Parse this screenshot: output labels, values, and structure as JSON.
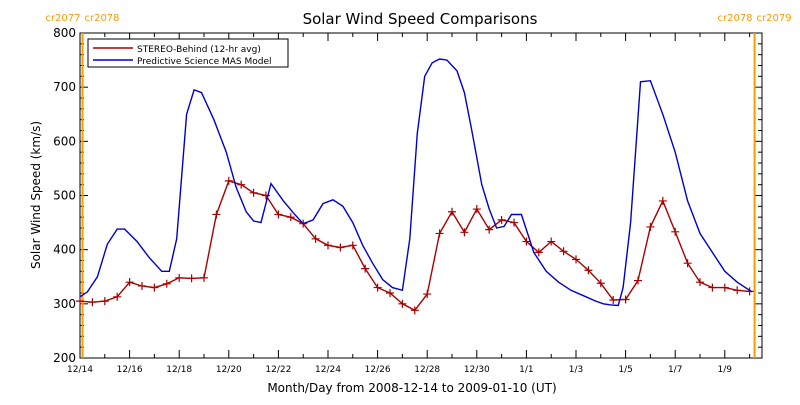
{
  "chart_data": {
    "type": "line",
    "title": "Solar Wind Speed Comparisons",
    "xlabel": "Month/Day from 2008-12-14 to 2009-01-10 (UT)",
    "ylabel": "Solar Wind Speed (km/s)",
    "xlim": [
      0,
      27.5
    ],
    "ylim": [
      200,
      800
    ],
    "yticks": [
      200,
      300,
      400,
      500,
      600,
      700,
      800
    ],
    "xticks": [
      {
        "x": 0,
        "label": "12/14"
      },
      {
        "x": 2,
        "label": "12/16"
      },
      {
        "x": 4,
        "label": "12/18"
      },
      {
        "x": 6,
        "label": "12/20"
      },
      {
        "x": 8,
        "label": "12/22"
      },
      {
        "x": 10,
        "label": "12/24"
      },
      {
        "x": 12,
        "label": "12/26"
      },
      {
        "x": 14,
        "label": "12/28"
      },
      {
        "x": 16,
        "label": "12/30"
      },
      {
        "x": 18,
        "label": "1/1"
      },
      {
        "x": 20,
        "label": "1/3"
      },
      {
        "x": 22,
        "label": "1/5"
      },
      {
        "x": 24,
        "label": "1/7"
      },
      {
        "x": 26,
        "label": "1/9"
      }
    ],
    "grid": false,
    "legend_position": "top-left",
    "carrington_markers": [
      {
        "x": 0.1,
        "left_label": "cr2077",
        "right_label": "cr2078"
      },
      {
        "x": 27.2,
        "left_label": "cr2078",
        "right_label": "cr2079"
      }
    ],
    "marker_color": "#ff9900",
    "series": [
      {
        "name": "STEREO-Behind (12-hr avg)",
        "color": "#aa0000",
        "marker": "plus",
        "x": [
          0,
          0.5,
          1,
          1.5,
          2,
          2.5,
          3,
          3.5,
          4,
          4.5,
          5,
          5.5,
          6,
          6.5,
          7,
          7.5,
          8,
          8.5,
          9,
          9.5,
          10,
          10.5,
          11,
          11.5,
          12,
          12.5,
          13,
          13.5,
          14,
          14.5,
          15,
          15.5,
          16,
          16.5,
          17,
          17.5,
          18,
          18.5,
          19,
          19.5,
          20,
          20.5,
          21,
          21.5,
          22,
          22.5,
          23,
          23.5,
          24,
          24.5,
          25,
          25.5,
          26,
          26.5,
          27
        ],
        "y": [
          305,
          303,
          305,
          313,
          340,
          333,
          330,
          337,
          348,
          347,
          348,
          465,
          527,
          520,
          505,
          500,
          465,
          460,
          448,
          420,
          408,
          404,
          408,
          365,
          330,
          320,
          300,
          288,
          318,
          430,
          470,
          432,
          475,
          437,
          455,
          450,
          415,
          395,
          415,
          397,
          382,
          362,
          338,
          307,
          308,
          343,
          442,
          490,
          433,
          375,
          340,
          330,
          330,
          325,
          323
        ]
      },
      {
        "name": "Predictive Science MAS Model",
        "color": "#0000cc",
        "marker": "none",
        "x": [
          0,
          0.3,
          0.7,
          1.1,
          1.5,
          1.8,
          2.3,
          2.8,
          3.3,
          3.6,
          3.9,
          4.3,
          4.6,
          4.9,
          5.4,
          5.9,
          6.3,
          6.7,
          7,
          7.3,
          7.7,
          8.2,
          8.6,
          9,
          9.4,
          9.8,
          10.2,
          10.6,
          11,
          11.4,
          11.8,
          12.2,
          12.6,
          13,
          13.3,
          13.6,
          13.9,
          14.2,
          14.5,
          14.8,
          15.2,
          15.5,
          15.8,
          16.2,
          16.5,
          16.8,
          17.1,
          17.4,
          17.8,
          18.3,
          18.8,
          19.3,
          19.8,
          20.3,
          20.8,
          21.1,
          21.4,
          21.7,
          21.9,
          22.2,
          22.6,
          23,
          23.5,
          24,
          24.5,
          25,
          25.5,
          26,
          26.5,
          27.1
        ],
        "y": [
          313,
          322,
          350,
          410,
          438,
          438,
          415,
          385,
          360,
          360,
          420,
          650,
          695,
          690,
          640,
          580,
          515,
          470,
          453,
          450,
          522,
          490,
          468,
          448,
          455,
          485,
          492,
          480,
          450,
          408,
          375,
          345,
          330,
          325,
          420,
          615,
          720,
          745,
          752,
          750,
          730,
          690,
          620,
          520,
          475,
          440,
          443,
          465,
          465,
          395,
          360,
          340,
          325,
          315,
          305,
          300,
          298,
          297,
          330,
          450,
          710,
          712,
          650,
          580,
          490,
          430,
          395,
          360,
          340,
          322
        ]
      }
    ]
  }
}
